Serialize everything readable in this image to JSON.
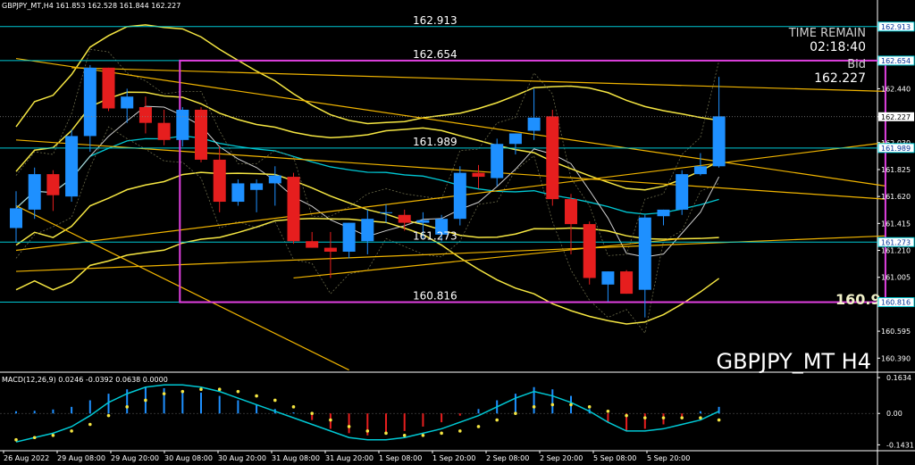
{
  "symbol_info": "GBPJPY_MT,H4  161.853 162.528 161.844 162.227",
  "watermark": "GBPJPY_MT H4",
  "time_remain_label": "TIME REMAIN",
  "time_remain": "02:18:40",
  "bid_label": "Bid",
  "bid_value": "162.227",
  "price_cut_label": "160.9",
  "macd_label": "MACD(12,26,9) 0.0246 -0.0392 0.0638 0.0000",
  "colors": {
    "bull": "#1e90ff",
    "bear": "#e61e1e",
    "cyan": "#00c8d4",
    "yellow": "#f5e642",
    "orange": "#f0b400",
    "magenta": "#e040e0",
    "grid": "#606060"
  },
  "chart_data": {
    "type": "candlestick",
    "ylim": [
      160.29,
      163.02
    ],
    "y_ticks": [
      "162.913",
      "162.654",
      "162.440",
      "162.227",
      "162.030",
      "161.989",
      "161.825",
      "161.620",
      "161.415",
      "161.273",
      "161.210",
      "161.005",
      "160.816",
      "160.595",
      "160.390"
    ],
    "x_ticks": [
      "26 Aug 2022",
      "29 Aug 08:00",
      "29 Aug 20:00",
      "30 Aug 08:00",
      "30 Aug 20:00",
      "31 Aug 08:00",
      "31 Aug 20:00",
      "1 Sep 08:00",
      "1 Sep 20:00",
      "2 Sep 08:00",
      "2 Sep 20:00",
      "5 Sep 08:00",
      "5 Sep 20:00"
    ],
    "level_labels": [
      {
        "value": 162.913,
        "label": "162.913"
      },
      {
        "value": 162.654,
        "label": "162.654"
      },
      {
        "value": 161.989,
        "label": "161.989"
      },
      {
        "value": 161.273,
        "label": "161.273"
      },
      {
        "value": 160.816,
        "label": "160.816"
      }
    ],
    "axis_markers": [
      {
        "value": 162.913,
        "label": "162.913"
      },
      {
        "value": 162.654,
        "label": "162.654"
      },
      {
        "value": 161.989,
        "label": "161.989"
      },
      {
        "value": 161.273,
        "label": "161.273"
      },
      {
        "value": 160.816,
        "label": "160.816"
      }
    ],
    "current_price": {
      "value": 162.227,
      "label": "162.227"
    },
    "box": {
      "start_index": 9,
      "end_index": 47,
      "top": 162.654,
      "bottom": 160.816
    },
    "candles": [
      {
        "o": 161.38,
        "h": 161.66,
        "l": 161.27,
        "c": 161.53
      },
      {
        "o": 161.52,
        "h": 161.84,
        "l": 161.45,
        "c": 161.79
      },
      {
        "o": 161.79,
        "h": 161.82,
        "l": 161.51,
        "c": 161.63
      },
      {
        "o": 161.62,
        "h": 162.13,
        "l": 161.58,
        "c": 162.08
      },
      {
        "o": 162.08,
        "h": 162.62,
        "l": 161.96,
        "c": 162.6
      },
      {
        "o": 162.6,
        "h": 162.6,
        "l": 162.27,
        "c": 162.29
      },
      {
        "o": 162.29,
        "h": 162.44,
        "l": 162.18,
        "c": 162.38
      },
      {
        "o": 162.3,
        "h": 162.38,
        "l": 162.1,
        "c": 162.18
      },
      {
        "o": 162.18,
        "h": 162.28,
        "l": 162.01,
        "c": 162.05
      },
      {
        "o": 162.05,
        "h": 162.3,
        "l": 162.0,
        "c": 162.28
      },
      {
        "o": 162.28,
        "h": 162.3,
        "l": 161.88,
        "c": 161.9
      },
      {
        "o": 161.9,
        "h": 162.0,
        "l": 161.5,
        "c": 161.58
      },
      {
        "o": 161.58,
        "h": 161.75,
        "l": 161.55,
        "c": 161.72
      },
      {
        "o": 161.67,
        "h": 161.75,
        "l": 161.5,
        "c": 161.72
      },
      {
        "o": 161.72,
        "h": 161.85,
        "l": 161.55,
        "c": 161.78
      },
      {
        "o": 161.77,
        "h": 161.8,
        "l": 161.26,
        "c": 161.28
      },
      {
        "o": 161.28,
        "h": 161.35,
        "l": 161.23,
        "c": 161.23
      },
      {
        "o": 161.23,
        "h": 161.35,
        "l": 161.0,
        "c": 161.2
      },
      {
        "o": 161.2,
        "h": 161.42,
        "l": 161.15,
        "c": 161.42
      },
      {
        "o": 161.28,
        "h": 161.52,
        "l": 161.18,
        "c": 161.45
      },
      {
        "o": 161.5,
        "h": 161.56,
        "l": 161.42,
        "c": 161.5
      },
      {
        "o": 161.48,
        "h": 161.52,
        "l": 161.36,
        "c": 161.42
      },
      {
        "o": 161.42,
        "h": 161.5,
        "l": 161.3,
        "c": 161.44
      },
      {
        "o": 161.33,
        "h": 161.48,
        "l": 161.28,
        "c": 161.45
      },
      {
        "o": 161.45,
        "h": 161.85,
        "l": 161.4,
        "c": 161.8
      },
      {
        "o": 161.8,
        "h": 161.86,
        "l": 161.68,
        "c": 161.77
      },
      {
        "o": 161.76,
        "h": 162.06,
        "l": 161.7,
        "c": 162.02
      },
      {
        "o": 162.02,
        "h": 162.1,
        "l": 161.94,
        "c": 162.1
      },
      {
        "o": 162.12,
        "h": 162.44,
        "l": 162.05,
        "c": 162.22
      },
      {
        "o": 162.23,
        "h": 162.28,
        "l": 161.55,
        "c": 161.6
      },
      {
        "o": 161.6,
        "h": 161.64,
        "l": 161.18,
        "c": 161.41
      },
      {
        "o": 161.41,
        "h": 161.43,
        "l": 160.95,
        "c": 161.0
      },
      {
        "o": 160.95,
        "h": 161.05,
        "l": 160.82,
        "c": 161.05
      },
      {
        "o": 161.05,
        "h": 161.06,
        "l": 160.88,
        "c": 160.88
      },
      {
        "o": 160.91,
        "h": 161.48,
        "l": 160.7,
        "c": 161.46
      },
      {
        "o": 161.47,
        "h": 161.52,
        "l": 161.4,
        "c": 161.52
      },
      {
        "o": 161.52,
        "h": 161.82,
        "l": 161.48,
        "c": 161.79
      },
      {
        "o": 161.79,
        "h": 161.95,
        "l": 161.78,
        "c": 161.85
      },
      {
        "o": 161.85,
        "h": 162.53,
        "l": 161.84,
        "c": 162.23
      }
    ],
    "macd": {
      "ylim": [
        -0.17,
        0.18
      ],
      "y_ticks": [
        "0.1634",
        "0.00",
        "-0.1431"
      ],
      "histogram": [
        0.01,
        0.012,
        0.018,
        0.03,
        0.06,
        0.09,
        0.11,
        0.12,
        0.115,
        0.105,
        0.095,
        0.08,
        0.06,
        0.04,
        0.02,
        0.005,
        -0.03,
        -0.07,
        -0.09,
        -0.1,
        -0.09,
        -0.08,
        -0.06,
        -0.04,
        -0.01,
        0.02,
        0.06,
        0.09,
        0.12,
        0.11,
        0.08,
        0.02,
        -0.04,
        -0.08,
        -0.07,
        -0.05,
        -0.02,
        0.01,
        0.03
      ],
      "macd_line": [
        -0.13,
        -0.11,
        -0.09,
        -0.06,
        -0.01,
        0.05,
        0.09,
        0.12,
        0.13,
        0.13,
        0.12,
        0.1,
        0.07,
        0.04,
        0.01,
        -0.02,
        -0.05,
        -0.08,
        -0.11,
        -0.12,
        -0.12,
        -0.11,
        -0.09,
        -0.07,
        -0.04,
        -0.01,
        0.03,
        0.07,
        0.1,
        0.08,
        0.05,
        0.01,
        -0.04,
        -0.08,
        -0.08,
        -0.07,
        -0.05,
        -0.03,
        0.01
      ],
      "signal": [
        -0.12,
        -0.11,
        -0.1,
        -0.08,
        -0.05,
        -0.01,
        0.03,
        0.06,
        0.09,
        0.1,
        0.11,
        0.11,
        0.1,
        0.08,
        0.06,
        0.03,
        0.0,
        -0.03,
        -0.06,
        -0.08,
        -0.09,
        -0.1,
        -0.1,
        -0.09,
        -0.08,
        -0.06,
        -0.03,
        0.0,
        0.03,
        0.04,
        0.04,
        0.03,
        0.01,
        -0.01,
        -0.02,
        -0.02,
        -0.02,
        -0.02,
        -0.03
      ]
    }
  }
}
